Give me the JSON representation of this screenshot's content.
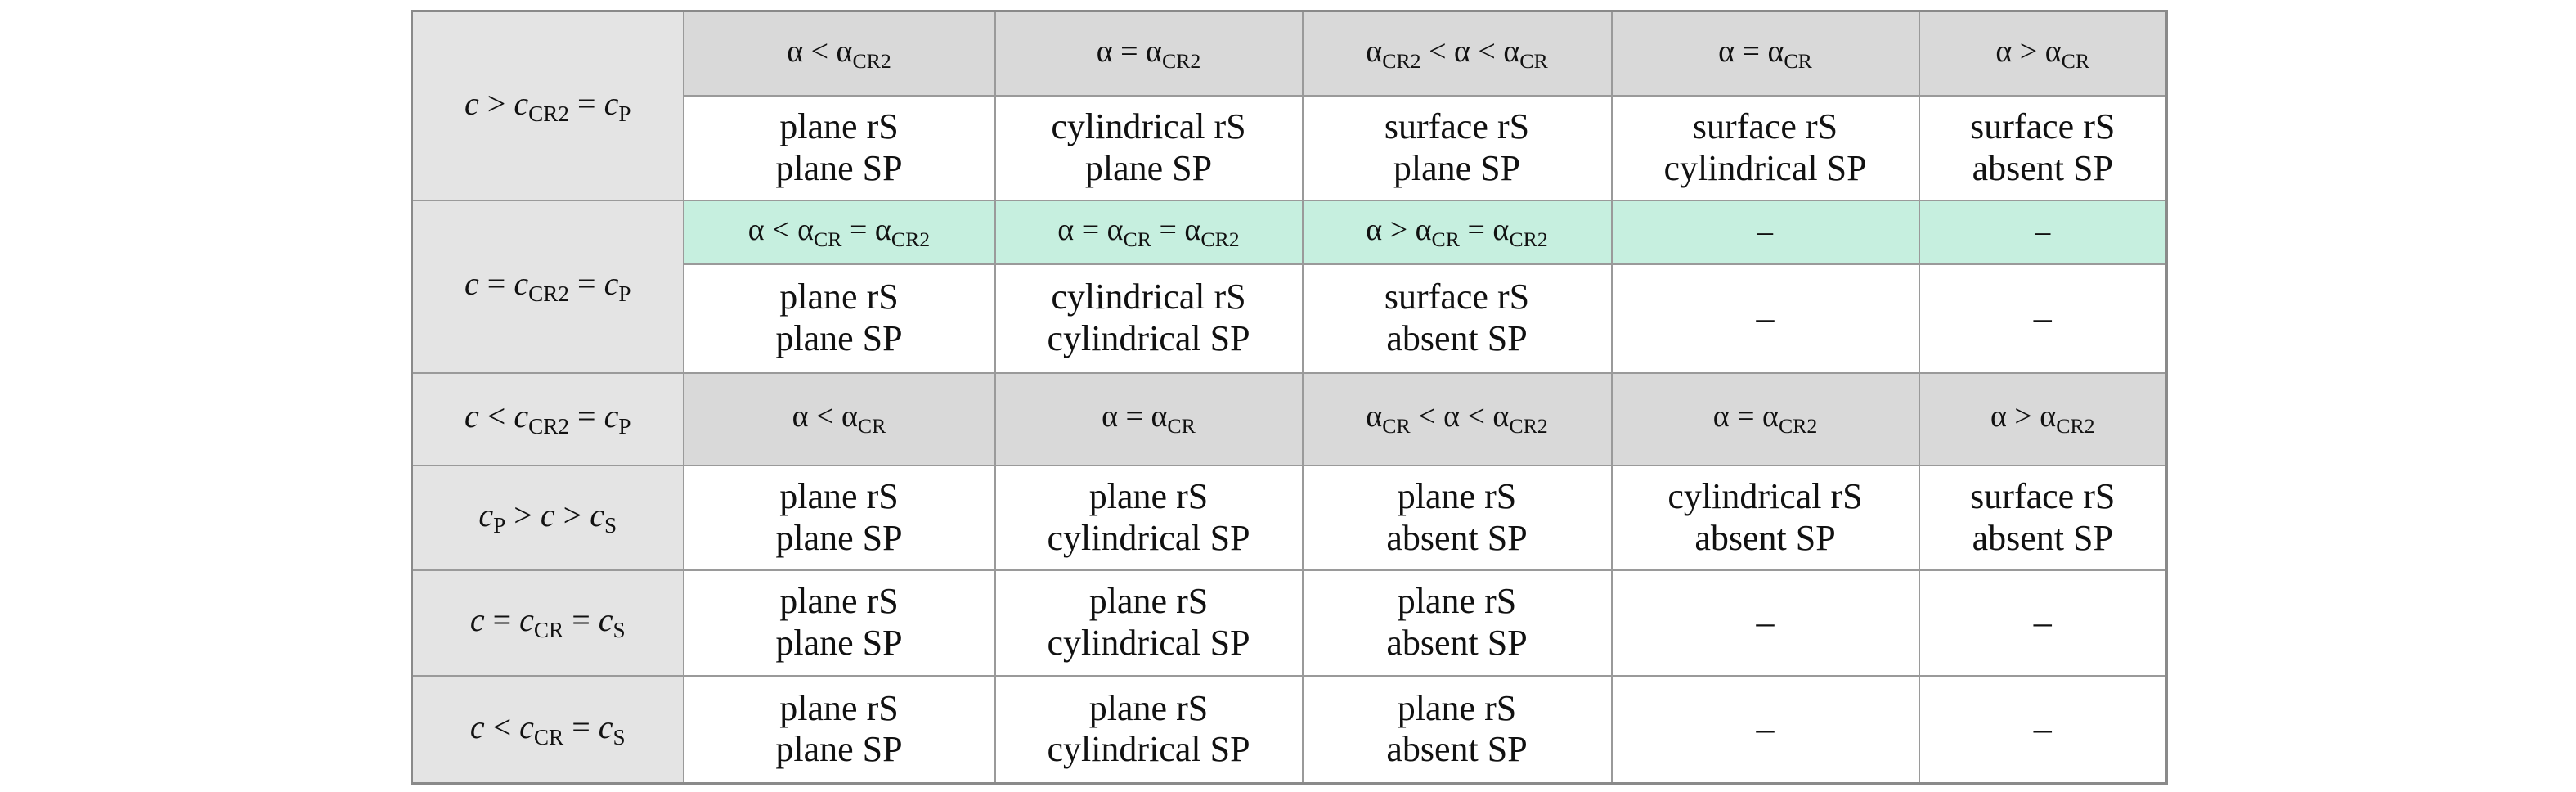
{
  "table": {
    "rows": [
      {
        "label": [
          {
            "i": "c"
          },
          " > ",
          {
            "i": "c"
          },
          {
            "sub": "CR2"
          },
          " = ",
          {
            "i": "c"
          },
          {
            "sub": "P"
          }
        ],
        "color": "#d9d9d9",
        "cells": [
          [
            [
              "α < α",
              {
                "sub": "CR2"
              }
            ]
          ],
          [
            [
              "α = α",
              {
                "sub": "CR2"
              }
            ]
          ],
          [
            [
              "α",
              {
                "sub": "CR2"
              },
              " < α < α",
              {
                "sub": "CR"
              }
            ]
          ],
          [
            [
              "α = α",
              {
                "sub": "CR"
              }
            ]
          ],
          [
            [
              "α > α",
              {
                "sub": "CR"
              }
            ]
          ]
        ]
      },
      {
        "cells": [
          [
            [
              "plane rS"
            ],
            [
              "plane SP"
            ]
          ],
          [
            [
              "cylindrical rS"
            ],
            [
              "plane SP"
            ]
          ],
          [
            [
              "surface rS"
            ],
            [
              "plane SP"
            ]
          ],
          [
            [
              "surface rS"
            ],
            [
              "cylindrical SP"
            ]
          ],
          [
            [
              "surface rS"
            ],
            [
              "absent SP"
            ]
          ]
        ]
      },
      {
        "label": [
          {
            "i": "c"
          },
          " = ",
          {
            "i": "c"
          },
          {
            "sub": "CR2"
          },
          " = ",
          {
            "i": "c"
          },
          {
            "sub": "P"
          }
        ],
        "color": "#c6efdf",
        "cells": [
          [
            [
              "α < α",
              {
                "sub": "CR"
              },
              " = α",
              {
                "sub": "CR2"
              }
            ]
          ],
          [
            [
              "α = α",
              {
                "sub": "CR"
              },
              " = α",
              {
                "sub": "CR2"
              }
            ]
          ],
          [
            [
              "α > α",
              {
                "sub": "CR"
              },
              " = α",
              {
                "sub": "CR2"
              }
            ]
          ],
          [
            [
              "–"
            ]
          ],
          [
            [
              "–"
            ]
          ]
        ]
      },
      {
        "cells": [
          [
            [
              "plane rS"
            ],
            [
              "plane SP"
            ]
          ],
          [
            [
              "cylindrical rS"
            ],
            [
              "cylindrical SP"
            ]
          ],
          [
            [
              "surface rS"
            ],
            [
              "absent SP"
            ]
          ],
          [
            [
              "–"
            ]
          ],
          [
            [
              "–"
            ]
          ]
        ]
      },
      {
        "label": [
          {
            "i": "c"
          },
          " < ",
          {
            "i": "c"
          },
          {
            "sub": "CR2"
          },
          " = ",
          {
            "i": "c"
          },
          {
            "sub": "P"
          }
        ],
        "color": "#d9d9d9",
        "cells": [
          [
            [
              "α < α",
              {
                "sub": "CR"
              }
            ]
          ],
          [
            [
              "α = α",
              {
                "sub": "CR"
              }
            ]
          ],
          [
            [
              "α",
              {
                "sub": "CR"
              },
              " < α < α",
              {
                "sub": "CR2"
              }
            ]
          ],
          [
            [
              "α = α",
              {
                "sub": "CR2"
              }
            ]
          ],
          [
            [
              "α > α",
              {
                "sub": "CR2"
              }
            ]
          ]
        ]
      },
      {
        "label": [
          {
            "i": "c"
          },
          {
            "sub": "P"
          },
          " > ",
          {
            "i": "c"
          },
          " > ",
          {
            "i": "c"
          },
          {
            "sub": "S"
          }
        ],
        "cells": [
          [
            [
              "plane rS"
            ],
            [
              "plane SP"
            ]
          ],
          [
            [
              "plane rS"
            ],
            [
              "cylindrical SP"
            ]
          ],
          [
            [
              "plane rS"
            ],
            [
              "absent SP"
            ]
          ],
          [
            [
              "cylindrical rS"
            ],
            [
              "absent SP"
            ]
          ],
          [
            [
              "surface rS"
            ],
            [
              "absent SP"
            ]
          ]
        ]
      },
      {
        "label": [
          {
            "i": "c"
          },
          " = ",
          {
            "i": "c"
          },
          {
            "sub": "CR"
          },
          " = ",
          {
            "i": "c"
          },
          {
            "sub": "S"
          }
        ],
        "cells": [
          [
            [
              "plane rS"
            ],
            [
              "plane SP"
            ]
          ],
          [
            [
              "plane rS"
            ],
            [
              "cylindrical SP"
            ]
          ],
          [
            [
              "plane rS"
            ],
            [
              "absent SP"
            ]
          ],
          [
            [
              "–"
            ]
          ],
          [
            [
              "–"
            ]
          ]
        ]
      },
      {
        "label": [
          {
            "i": "c"
          },
          " < ",
          {
            "i": "c"
          },
          {
            "sub": "CR"
          },
          " = ",
          {
            "i": "c"
          },
          {
            "sub": "S"
          }
        ],
        "cells": [
          [
            [
              "plane rS"
            ],
            [
              "plane SP"
            ]
          ],
          [
            [
              "plane rS"
            ],
            [
              "cylindrical SP"
            ]
          ],
          [
            [
              "plane rS"
            ],
            [
              "absent SP"
            ]
          ],
          [
            [
              "–"
            ]
          ],
          [
            [
              "–"
            ]
          ]
        ]
      }
    ]
  }
}
